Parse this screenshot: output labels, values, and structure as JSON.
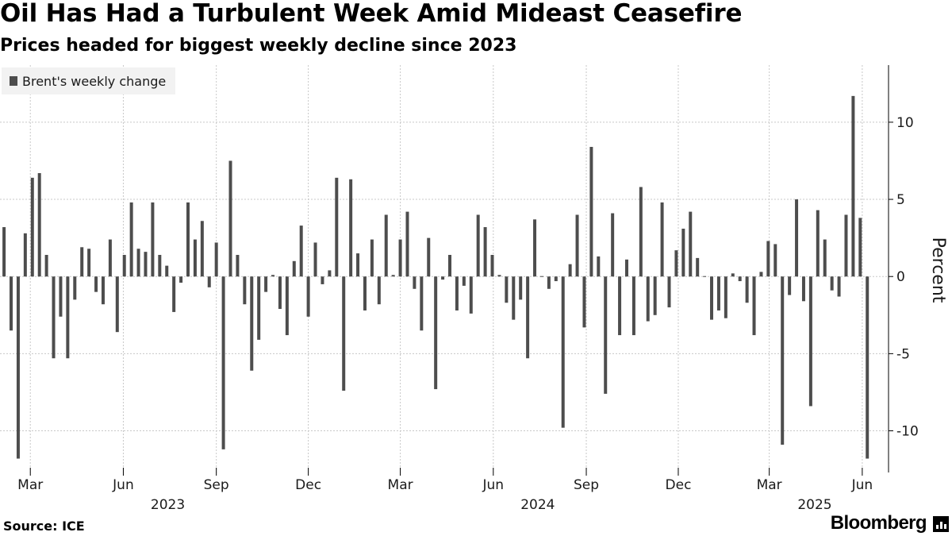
{
  "header": {
    "title": "Oil Has Had a Turbulent Week Amid Mideast Ceasefire",
    "subtitle": "Prices headed for biggest weekly decline since 2023"
  },
  "footer": {
    "source": "Source: ICE",
    "brand": "Bloomberg"
  },
  "colors": {
    "bar": "#4d4d4d",
    "grid": "#c8c8c8",
    "legend_bg": "#f2f2f2"
  },
  "chart_data": {
    "type": "bar",
    "title": "Oil Has Had a Turbulent Week Amid Mideast Ceasefire",
    "subtitle": "Prices headed for biggest weekly decline since 2023",
    "ylabel": "Percent",
    "ylim": [
      -12.7,
      13.7
    ],
    "yticks": [
      10,
      5,
      0,
      -5,
      -10
    ],
    "ytick_labels": [
      "10",
      "5",
      "0",
      "-5",
      "-10"
    ],
    "y_axis_position": "right",
    "grid": true,
    "legend": "top-left",
    "x_axis": {
      "type": "date",
      "range": [
        "2023-01-30",
        "2025-06-27"
      ],
      "month_ticks": [
        {
          "date": "2023-03-01",
          "label": "Mar"
        },
        {
          "date": "2023-06-01",
          "label": "Jun"
        },
        {
          "date": "2023-09-01",
          "label": "Sep"
        },
        {
          "date": "2023-12-01",
          "label": "Dec"
        },
        {
          "date": "2024-03-01",
          "label": "Mar"
        },
        {
          "date": "2024-06-01",
          "label": "Jun"
        },
        {
          "date": "2024-09-01",
          "label": "Sep"
        },
        {
          "date": "2024-12-01",
          "label": "Dec"
        },
        {
          "date": "2025-03-01",
          "label": "Mar"
        },
        {
          "date": "2025-06-01",
          "label": "Jun"
        }
      ],
      "year_labels": [
        {
          "date": "2023-07-15",
          "label": "2023"
        },
        {
          "date": "2024-07-15",
          "label": "2024"
        },
        {
          "date": "2025-04-15",
          "label": "2025"
        }
      ]
    },
    "series": [
      {
        "name": "Brent's weekly change",
        "color": "#4d4d4d",
        "start_date": "2023-02-03",
        "interval_days": 7,
        "values": [
          3.2,
          -3.5,
          -11.8,
          2.8,
          6.4,
          6.7,
          1.4,
          -5.3,
          -2.6,
          -5.3,
          -1.5,
          1.9,
          1.8,
          -1.0,
          -1.8,
          2.4,
          -3.6,
          1.4,
          4.8,
          1.8,
          1.6,
          4.8,
          1.4,
          0.7,
          -2.3,
          -0.4,
          4.8,
          2.4,
          3.6,
          -0.7,
          2.2,
          -11.2,
          7.5,
          1.4,
          -1.8,
          -6.1,
          -4.1,
          -1.0,
          0.1,
          -2.1,
          -3.8,
          1.0,
          3.3,
          -2.6,
          2.2,
          -0.5,
          0.4,
          6.4,
          -7.4,
          6.3,
          1.5,
          -2.2,
          2.4,
          -1.8,
          4.0,
          0.1,
          2.4,
          4.2,
          -0.8,
          -3.5,
          2.5,
          -7.3,
          -0.2,
          1.4,
          -2.2,
          -0.6,
          -2.4,
          4.0,
          3.2,
          1.4,
          0.1,
          -1.7,
          -2.8,
          -1.5,
          -5.3,
          3.7,
          0.05,
          -0.8,
          -0.3,
          -9.8,
          0.8,
          4.0,
          -3.3,
          8.4,
          1.3,
          -7.6,
          4.1,
          -3.8,
          1.1,
          -3.8,
          5.8,
          -2.9,
          -2.5,
          4.8,
          -2.0,
          1.7,
          3.1,
          4.2,
          1.2,
          0.02,
          -2.8,
          -2.2,
          -2.7,
          0.2,
          -0.3,
          -1.7,
          -3.8,
          0.3,
          2.3,
          2.1,
          -10.9,
          -1.2,
          5.0,
          -1.6,
          -8.4,
          4.3,
          2.4,
          -0.9,
          -1.3,
          4.0,
          11.7,
          3.8,
          -11.8
        ]
      }
    ]
  }
}
